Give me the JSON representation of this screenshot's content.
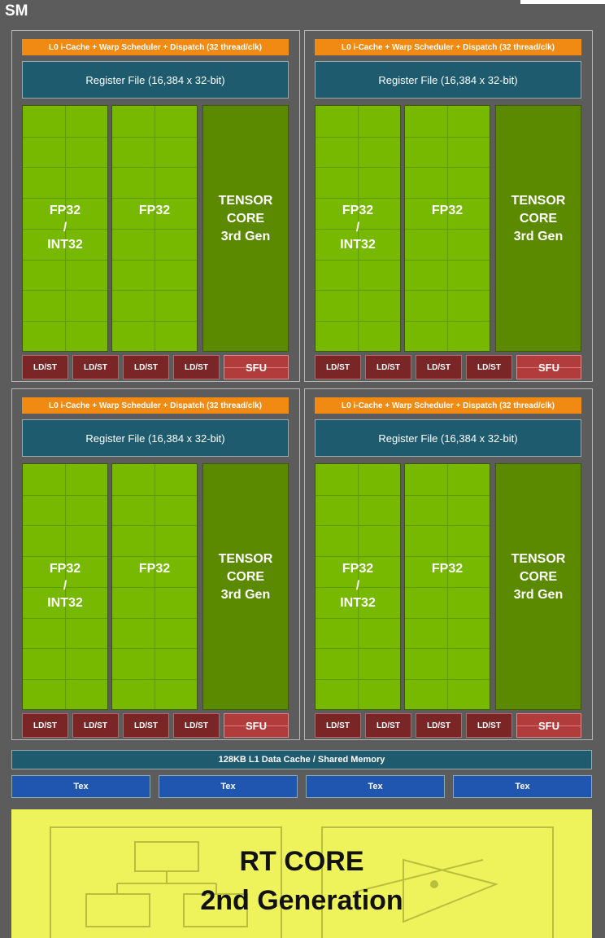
{
  "sm": {
    "title": "SM",
    "quadrants": [
      {
        "l0": "L0 i-Cache + Warp Scheduler + Dispatch (32 thread/clk)",
        "register_file": "Register File (16,384 x 32-bit)",
        "fp_int": {
          "line1": "FP32",
          "line2": "/",
          "line3": "INT32"
        },
        "fp32": "FP32",
        "tensor": {
          "line1": "TENSOR",
          "line2": "CORE",
          "line3": "3rd Gen"
        },
        "ldst": [
          "LD/ST",
          "LD/ST",
          "LD/ST",
          "LD/ST"
        ],
        "sfu": "SFU"
      },
      {
        "l0": "L0 i-Cache + Warp Scheduler + Dispatch (32 thread/clk)",
        "register_file": "Register File (16,384 x 32-bit)",
        "fp_int": {
          "line1": "FP32",
          "line2": "/",
          "line3": "INT32"
        },
        "fp32": "FP32",
        "tensor": {
          "line1": "TENSOR",
          "line2": "CORE",
          "line3": "3rd Gen"
        },
        "ldst": [
          "LD/ST",
          "LD/ST",
          "LD/ST",
          "LD/ST"
        ],
        "sfu": "SFU"
      },
      {
        "l0": "L0 i-Cache + Warp Scheduler + Dispatch (32 thread/clk)",
        "register_file": "Register File (16,384 x 32-bit)",
        "fp_int": {
          "line1": "FP32",
          "line2": "/",
          "line3": "INT32"
        },
        "fp32": "FP32",
        "tensor": {
          "line1": "TENSOR",
          "line2": "CORE",
          "line3": "3rd Gen"
        },
        "ldst": [
          "LD/ST",
          "LD/ST",
          "LD/ST",
          "LD/ST"
        ],
        "sfu": "SFU"
      },
      {
        "l0": "L0 i-Cache + Warp Scheduler + Dispatch (32 thread/clk)",
        "register_file": "Register File (16,384 x 32-bit)",
        "fp_int": {
          "line1": "FP32",
          "line2": "/",
          "line3": "INT32"
        },
        "fp32": "FP32",
        "tensor": {
          "line1": "TENSOR",
          "line2": "CORE",
          "line3": "3rd Gen"
        },
        "ldst": [
          "LD/ST",
          "LD/ST",
          "LD/ST",
          "LD/ST"
        ],
        "sfu": "SFU"
      }
    ],
    "l1_cache": "128KB L1 Data Cache / Shared Memory",
    "tex": [
      "Tex",
      "Tex",
      "Tex",
      "Tex"
    ],
    "rt_core": {
      "line1": "RT CORE",
      "line2": "2nd Generation"
    }
  },
  "colors": {
    "l0_cache": "#f08a12",
    "register_file": "#1f5b6e",
    "fp32": "#76b900",
    "tensor_core": "#5b8a00",
    "ldst": "#7a2626",
    "sfu": "#b23b3b",
    "tex": "#2056b0",
    "rt_core": "#eef35c"
  }
}
